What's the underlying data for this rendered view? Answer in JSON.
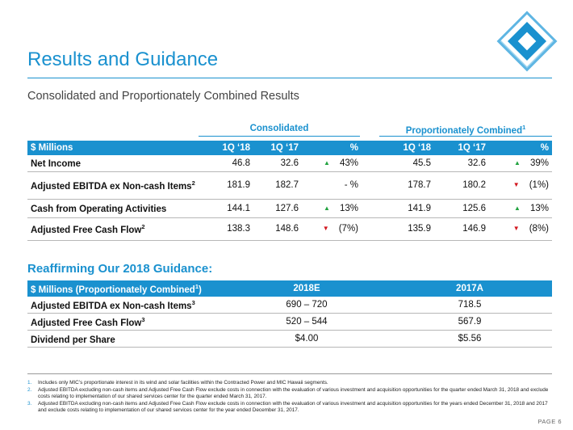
{
  "header": {
    "title": "Results and Guidance",
    "subtitle": "Consolidated and Proportionately Combined Results"
  },
  "table1": {
    "group_consolidated": "Consolidated",
    "group_proportionate": "Proportionately Combined",
    "group_proportionate_sup": "1",
    "columns": [
      "$ Millions",
      "1Q ‘18",
      "1Q ‘17",
      "%",
      "1Q ‘18",
      "1Q ‘17",
      "%"
    ],
    "rows": [
      {
        "label": "Net Income",
        "sup": "",
        "c18": "46.8",
        "c17": "32.6",
        "cpct_dir": "up",
        "cpct": "43%",
        "p18": "45.5",
        "p17": "32.6",
        "ppct_dir": "up",
        "ppct": "39%"
      },
      {
        "label": "Adjusted EBITDA ex Non-cash Items",
        "sup": "2",
        "c18": "181.9",
        "c17": "182.7",
        "cpct_dir": "none",
        "cpct": "- %",
        "p18": "178.7",
        "p17": "180.2",
        "ppct_dir": "down",
        "ppct": "(1%)"
      },
      {
        "label": "Cash from Operating Activities",
        "sup": "",
        "c18": "144.1",
        "c17": "127.6",
        "cpct_dir": "up",
        "cpct": "13%",
        "p18": "141.9",
        "p17": "125.6",
        "ppct_dir": "up",
        "ppct": "13%"
      },
      {
        "label": "Adjusted Free Cash Flow",
        "sup": "2",
        "c18": "138.3",
        "c17": "148.6",
        "cpct_dir": "down",
        "cpct": "(7%)",
        "p18": "135.9",
        "p17": "146.9",
        "ppct_dir": "down",
        "ppct": "(8%)"
      }
    ]
  },
  "guidance": {
    "heading": "Reaffirming Our 2018 Guidance:",
    "col_label": "$ Millions (Proportionately Combined",
    "col_label_sup": "1",
    "col_label_end": ")",
    "col_2018": "2018E",
    "col_2017": "2017A",
    "rows": [
      {
        "label": "Adjusted EBITDA ex Non-cash Items",
        "sup": "3",
        "v2018": "690 – 720",
        "v2017": "718.5"
      },
      {
        "label": "Adjusted Free Cash Flow",
        "sup": "3",
        "v2018": "520 – 544",
        "v2017": "567.9"
      },
      {
        "label": "Dividend per Share",
        "sup": "",
        "v2018": "$4.00",
        "v2017": "$5.56"
      }
    ]
  },
  "footnotes": [
    {
      "n": "1.",
      "text": "Includes only MIC’s proportionate interest in its wind and solar facilities within the Contracted Power and MIC Hawaii segments."
    },
    {
      "n": "2.",
      "text": "Adjusted EBITDA excluding non-cash items and Adjusted Free Cash Flow exclude costs in connection with the evaluation of various investment and acquisition opportunities for the quarter ended March 31, 2018 and exclude costs relating to implementation of our shared services center for the quarter ended March 31, 2017."
    },
    {
      "n": "3.",
      "text": "Adjusted EBITDA excluding non-cash items and Adjusted Free Cash Flow exclude costs in connection with the evaluation of various investment and acquisition opportunities for the years ended December 31, 2018 and 2017 and exclude costs relating to implementation of our shared services center for the year ended December 31, 2017."
    }
  ],
  "page_label": "PAGE 6",
  "colors": {
    "accent": "#1a91cf",
    "up": "#22a340",
    "down": "#d2161e"
  },
  "icons": {
    "up": "▲",
    "down": "▼"
  }
}
